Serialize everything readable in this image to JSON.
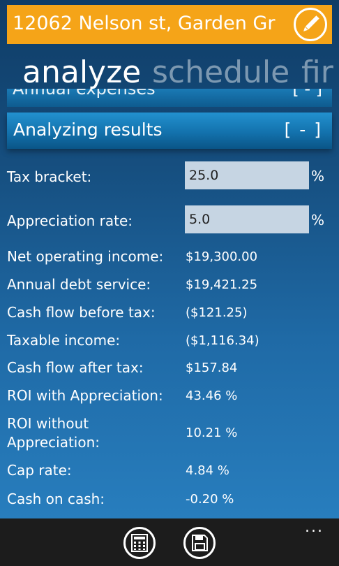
{
  "header": {
    "address": "12062 Nelson st, Garden Gr",
    "edit_icon": "pencil-icon",
    "background": "#f5a418"
  },
  "pivot": {
    "tabs": [
      "analyze",
      "schedule",
      "fir"
    ]
  },
  "collapsed_section": {
    "title": "Annual expenses",
    "toggle": "[ - ]"
  },
  "section": {
    "title": "Analyzing results",
    "toggle": "[ - ]"
  },
  "inputs": {
    "tax_bracket": {
      "label": "Tax bracket:",
      "value": "25.0",
      "unit": "%"
    },
    "appreciation_rate": {
      "label": "Appreciation rate:",
      "value": "5.0",
      "unit": "%"
    }
  },
  "results": [
    {
      "label": "Net operating income:",
      "value": "$19,300.00"
    },
    {
      "label": "Annual debt service:",
      "value": "$19,421.25"
    },
    {
      "label": "Cash flow before tax:",
      "value": "($121.25)"
    },
    {
      "label": "Taxable income:",
      "value": "($1,116.34)"
    },
    {
      "label": "Cash flow after tax:",
      "value": "$157.84"
    },
    {
      "label": "ROI with Appreciation:",
      "value": "43.46 %"
    },
    {
      "label": "ROI without Appreciation:",
      "value": "10.21 %"
    },
    {
      "label": "Cap rate:",
      "value": "4.84 %"
    },
    {
      "label": "Cash on cash:",
      "value": "-0.20 %"
    }
  ],
  "appbar": {
    "buttons": [
      "calculator-icon",
      "save-icon"
    ],
    "more": "..."
  }
}
